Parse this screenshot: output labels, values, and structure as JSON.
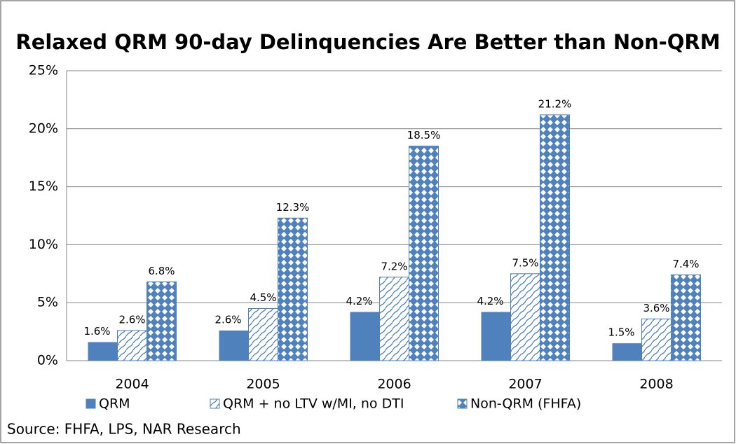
{
  "chart_data": {
    "type": "bar",
    "title": "Relaxed QRM 90-day Delinquencies Are Better than Non-QRM",
    "source": "Source: FHFA, LPS, NAR Research",
    "categories": [
      "2004",
      "2005",
      "2006",
      "2007",
      "2008"
    ],
    "series": [
      {
        "name": "QRM",
        "color": "#4f81bd",
        "pattern": "solid",
        "values": [
          1.6,
          2.6,
          4.2,
          4.2,
          1.5
        ],
        "value_labels": [
          "1.6%",
          "2.6%",
          "4.2%",
          "4.2%",
          "1.5%"
        ]
      },
      {
        "name": "QRM + no LTV w/MI, no DTI",
        "color": "#4f81bd",
        "pattern": "hatch",
        "values": [
          2.6,
          4.5,
          7.2,
          7.5,
          3.6
        ],
        "value_labels": [
          "2.6%",
          "4.5%",
          "7.2%",
          "7.5%",
          "3.6%"
        ]
      },
      {
        "name": "Non-QRM (FHFA)",
        "color": "#4f81bd",
        "pattern": "diamond",
        "values": [
          6.8,
          12.3,
          18.5,
          21.2,
          7.4
        ],
        "value_labels": [
          "6.8%",
          "12.3%",
          "18.5%",
          "21.2%",
          "7.4%"
        ]
      }
    ],
    "ylim": [
      0,
      25
    ],
    "yticks": [
      {
        "value": 0,
        "label": "0%"
      },
      {
        "value": 5,
        "label": "5%"
      },
      {
        "value": 10,
        "label": "10%"
      },
      {
        "value": 15,
        "label": "15%"
      },
      {
        "value": 20,
        "label": "20%"
      },
      {
        "value": 25,
        "label": "25%"
      }
    ],
    "grid": true,
    "legend": "bottom"
  }
}
